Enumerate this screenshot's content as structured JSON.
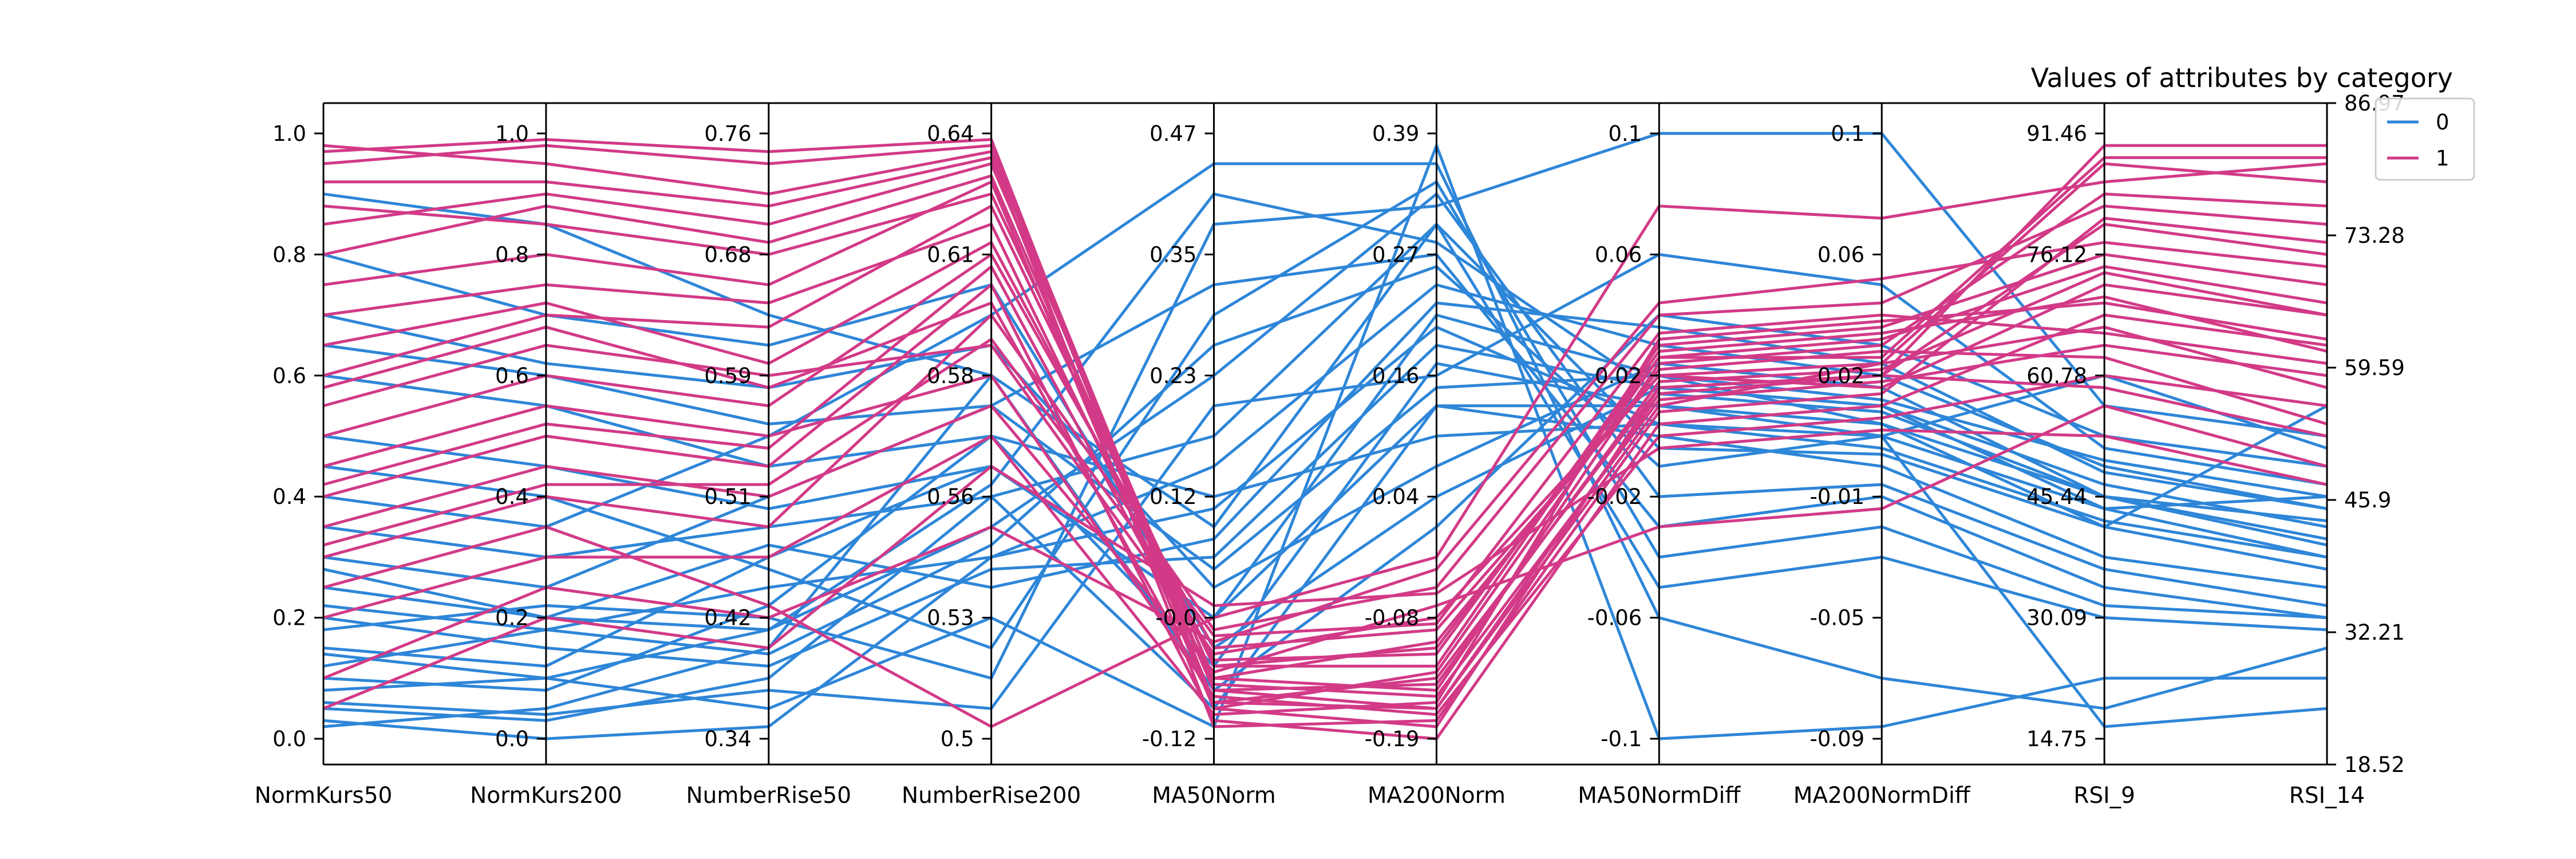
{
  "chart_data": {
    "type": "parallel-coordinates",
    "title": "Values of attributes by category",
    "axes": [
      "NormKurs50",
      "NormKurs200",
      "NumberRise50",
      "NumberRise200",
      "MA50Norm",
      "MA200Norm",
      "MA50NormDiff",
      "MA200NormDiff",
      "RSI_9",
      "RSI_14"
    ],
    "left_axis_ticks": [
      "0.0",
      "0.2",
      "0.4",
      "0.6",
      "0.8",
      "1.0"
    ],
    "axis_tick_labels": [
      [
        "0.0",
        "0.2",
        "0.4",
        "0.6",
        "0.8",
        "1.0"
      ],
      [
        "0.34",
        "0.42",
        "0.51",
        "0.59",
        "0.68",
        "0.76"
      ],
      [
        "0.5",
        "0.53",
        "0.56",
        "0.58",
        "0.61",
        "0.64"
      ],
      [
        "-0.12",
        "-0.0",
        "0.12",
        "0.23",
        "0.35",
        "0.47"
      ],
      [
        "-0.19",
        "-0.08",
        "0.04",
        "0.16",
        "0.27",
        "0.39"
      ],
      [
        "-0.1",
        "-0.06",
        "-0.02",
        "0.02",
        "0.06",
        "0.1"
      ],
      [
        "-0.09",
        "-0.05",
        "-0.01",
        "0.02",
        "0.06",
        "0.1"
      ],
      [
        "14.75",
        "30.09",
        "45.44",
        "60.78",
        "76.12",
        "91.46"
      ]
    ],
    "right_axis_ticks": [
      "18.52",
      "32.21",
      "45.9",
      "59.59",
      "73.28",
      "86.97"
    ],
    "ylim": [
      0,
      1
    ],
    "legend": {
      "placement": "top-right"
    },
    "grid": false,
    "colors": {
      "0": "#2e86d8",
      "1": "#d23a87"
    },
    "series": [
      {
        "name": "0",
        "color": "#2e86d8",
        "values": [
          [
            0.05,
            0.03,
            0.1,
            0.4,
            0.05,
            0.55,
            0.5,
            0.45,
            0.3,
            0.25
          ],
          [
            0.1,
            0.08,
            0.22,
            0.5,
            0.12,
            0.62,
            0.55,
            0.5,
            0.38,
            0.3
          ],
          [
            0.15,
            0.12,
            0.3,
            0.45,
            0.2,
            0.7,
            0.6,
            0.52,
            0.4,
            0.33
          ],
          [
            0.02,
            0.05,
            0.15,
            0.6,
            0.35,
            0.85,
            0.48,
            0.47,
            0.35,
            0.28
          ],
          [
            0.25,
            0.2,
            0.18,
            0.35,
            0.6,
            0.9,
            0.4,
            0.42,
            0.28,
            0.22
          ],
          [
            0.3,
            0.25,
            0.4,
            0.55,
            0.75,
            0.8,
            0.35,
            0.4,
            0.25,
            0.2
          ],
          [
            0.4,
            0.35,
            0.5,
            0.7,
            0.95,
            0.95,
            0.2,
            0.1,
            0.05,
            0.15
          ],
          [
            0.08,
            0.1,
            0.05,
            0.2,
            0.02,
            0.98,
            0.0,
            0.02,
            0.1,
            0.1
          ],
          [
            0.12,
            0.18,
            0.25,
            0.3,
            0.45,
            0.75,
            0.65,
            0.6,
            0.45,
            0.38
          ],
          [
            0.2,
            0.15,
            0.12,
            0.28,
            0.3,
            0.65,
            0.58,
            0.55,
            0.42,
            0.35
          ],
          [
            0.6,
            0.55,
            0.45,
            0.5,
            0.4,
            0.5,
            0.52,
            0.48,
            0.36,
            0.3
          ],
          [
            0.7,
            0.62,
            0.58,
            0.65,
            0.25,
            0.45,
            0.62,
            0.58,
            0.4,
            0.32
          ],
          [
            0.8,
            0.7,
            0.65,
            0.75,
            0.15,
            0.4,
            0.58,
            0.55,
            0.38,
            0.4
          ],
          [
            0.9,
            0.85,
            0.7,
            0.6,
            0.08,
            0.35,
            0.7,
            0.65,
            0.5,
            0.45
          ],
          [
            0.35,
            0.3,
            0.35,
            0.4,
            0.5,
            0.85,
            0.25,
            0.3,
            0.2,
            0.18
          ],
          [
            0.45,
            0.4,
            0.28,
            0.15,
            0.7,
            0.92,
            0.3,
            0.35,
            0.22,
            0.2
          ],
          [
            0.18,
            0.22,
            0.2,
            0.1,
            0.85,
            0.88,
            1.0,
            1.0,
            0.55,
            0.5
          ],
          [
            0.06,
            0.04,
            0.08,
            0.05,
            0.55,
            0.6,
            0.8,
            0.75,
            0.48,
            0.42
          ],
          [
            0.28,
            0.2,
            0.32,
            0.25,
            0.33,
            0.72,
            0.68,
            0.62,
            0.44,
            0.38
          ],
          [
            0.5,
            0.45,
            0.38,
            0.45,
            0.2,
            0.55,
            0.55,
            0.52,
            0.35,
            0.55
          ],
          [
            0.22,
            0.18,
            0.14,
            0.32,
            0.65,
            0.78,
            0.45,
            0.5,
            0.6,
            0.48
          ],
          [
            0.03,
            0.0,
            0.02,
            0.3,
            0.38,
            0.68,
            0.52,
            0.5,
            0.02,
            0.05
          ],
          [
            0.65,
            0.6,
            0.52,
            0.55,
            0.28,
            0.58,
            0.6,
            0.56,
            0.46,
            0.4
          ],
          [
            0.14,
            0.1,
            0.18,
            0.42,
            0.9,
            0.82,
            0.57,
            0.54,
            0.4,
            0.36
          ]
        ]
      },
      {
        "name": "1",
        "color": "#d23a87",
        "values": [
          [
            0.95,
            0.98,
            0.95,
            0.98,
            0.08,
            0.05,
            0.55,
            0.62,
            0.95,
            0.92
          ],
          [
            0.85,
            0.9,
            0.85,
            0.95,
            0.1,
            0.08,
            0.62,
            0.65,
            0.9,
            0.88
          ],
          [
            0.75,
            0.8,
            0.75,
            0.92,
            0.05,
            0.02,
            0.58,
            0.6,
            0.85,
            0.8
          ],
          [
            0.6,
            0.7,
            0.68,
            0.88,
            0.12,
            0.12,
            0.65,
            0.68,
            0.8,
            0.75
          ],
          [
            0.5,
            0.6,
            0.55,
            0.8,
            0.15,
            0.18,
            0.6,
            0.58,
            0.75,
            0.7
          ],
          [
            0.4,
            0.5,
            0.45,
            0.75,
            0.03,
            0.0,
            0.52,
            0.55,
            0.7,
            0.65
          ],
          [
            0.3,
            0.4,
            0.35,
            0.7,
            0.18,
            0.25,
            0.7,
            0.72,
            0.88,
            0.85
          ],
          [
            0.25,
            0.35,
            0.22,
            0.02,
            0.2,
            0.3,
            0.88,
            0.86,
            0.92,
            0.95
          ],
          [
            0.98,
            0.95,
            0.9,
            0.97,
            0.06,
            0.1,
            0.58,
            0.6,
            0.98,
            0.98
          ],
          [
            0.88,
            0.85,
            0.8,
            0.9,
            0.12,
            0.15,
            0.63,
            0.66,
            0.78,
            0.72
          ],
          [
            0.7,
            0.75,
            0.72,
            0.85,
            0.09,
            0.07,
            0.56,
            0.59,
            0.65,
            0.6
          ],
          [
            0.55,
            0.65,
            0.6,
            0.65,
            0.14,
            0.2,
            0.6,
            0.62,
            0.68,
            0.58
          ],
          [
            0.45,
            0.55,
            0.5,
            0.6,
            0.07,
            0.04,
            0.5,
            0.53,
            0.6,
            0.55
          ],
          [
            0.35,
            0.45,
            0.4,
            0.55,
            0.11,
            0.22,
            0.35,
            0.38,
            0.55,
            0.45
          ],
          [
            0.2,
            0.3,
            0.3,
            0.5,
            0.04,
            0.06,
            0.66,
            0.69,
            0.72,
            0.66
          ],
          [
            0.1,
            0.25,
            0.2,
            0.35,
            0.16,
            0.28,
            0.72,
            0.76,
            0.82,
            0.78
          ],
          [
            0.92,
            0.92,
            0.88,
            0.96,
            0.02,
            0.03,
            0.54,
            0.57,
            0.86,
            0.82
          ],
          [
            0.8,
            0.88,
            0.82,
            0.93,
            0.08,
            0.09,
            0.59,
            0.61,
            0.77,
            0.7
          ],
          [
            0.65,
            0.72,
            0.62,
            0.82,
            0.13,
            0.14,
            0.64,
            0.67,
            0.73,
            0.64
          ],
          [
            0.42,
            0.52,
            0.48,
            0.78,
            0.1,
            0.16,
            0.61,
            0.64,
            0.63,
            0.52
          ],
          [
            0.58,
            0.68,
            0.58,
            0.72,
            0.06,
            0.05,
            0.57,
            0.6,
            0.58,
            0.5
          ],
          [
            0.32,
            0.42,
            0.42,
            0.66,
            0.17,
            0.19,
            0.67,
            0.7,
            0.67,
            0.62
          ],
          [
            0.05,
            0.2,
            0.15,
            0.45,
            0.22,
            0.24,
            0.48,
            0.51,
            0.5,
            0.42
          ],
          [
            0.97,
            0.99,
            0.97,
            0.99,
            0.05,
            0.11,
            0.63,
            0.63,
            0.96,
            0.96
          ]
        ]
      }
    ]
  }
}
